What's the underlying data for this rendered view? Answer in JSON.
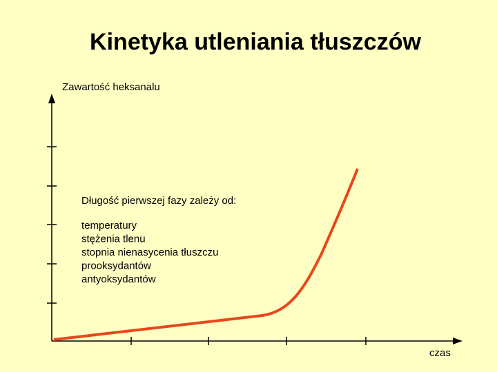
{
  "title": "Kinetyka utleniania tłuszczów",
  "y_axis_label": "Zawartość heksanalu",
  "x_axis_label": "czas",
  "note": {
    "heading": "Długość pierwszej fazy zależy od:",
    "items": [
      "temperatury",
      "stężenia tlenu",
      "stopnia nienasycenia tłuszczu",
      "prooksydantów",
      "antyoksydantów"
    ]
  }
}
